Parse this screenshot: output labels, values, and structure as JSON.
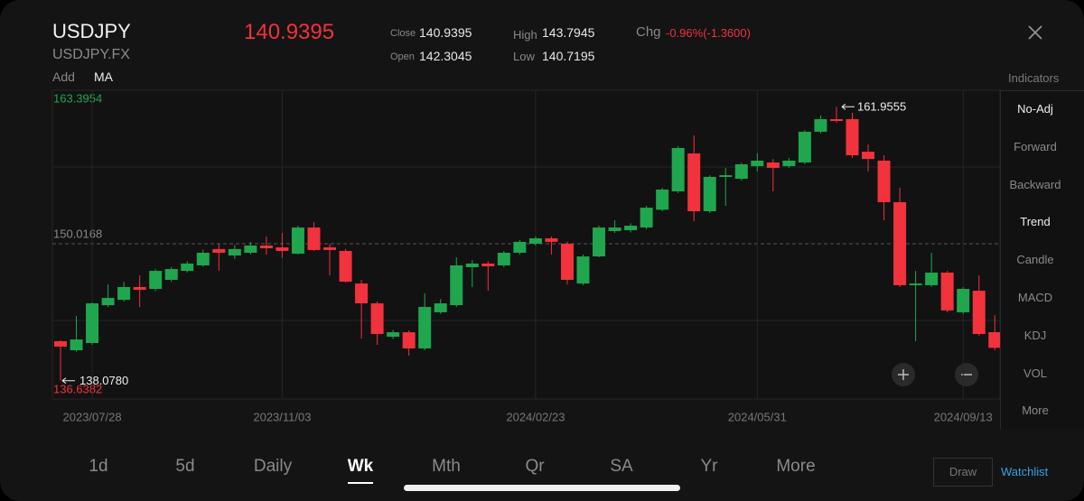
{
  "header": {
    "symbol": "USDJPY",
    "code": "USDJPY.FX",
    "price": "140.9395",
    "stats": [
      {
        "label": "Close",
        "value": "140.9395"
      },
      {
        "label": "Open",
        "value": "142.3045"
      },
      {
        "label": "High",
        "value": "143.7945"
      },
      {
        "label": "Low",
        "value": "140.7195"
      }
    ],
    "chg_label": "Chg",
    "chg": "-0.96%(-1.3600)"
  },
  "toolbar": {
    "add": "Add",
    "ma": "MA"
  },
  "indicators": {
    "title": "Indicators",
    "items": [
      "No-Adj",
      "Forward",
      "Backward",
      "Trend",
      "Candle",
      "MACD",
      "KDJ",
      "VOL",
      "More"
    ]
  },
  "periods": [
    "1d",
    "5d",
    "Daily",
    "Wk",
    "Mth",
    "Qr",
    "SA",
    "Yr",
    "More"
  ],
  "buttons": {
    "draw": "Draw",
    "watchlist": "Watchlist"
  },
  "chart_data": {
    "type": "candlestick",
    "categories": [
      null,
      null,
      "2023/07/28",
      null,
      null,
      null,
      null,
      null,
      null,
      null,
      null,
      null,
      null,
      null,
      "2023/11/03",
      null,
      null,
      null,
      null,
      null,
      null,
      null,
      null,
      null,
      null,
      null,
      null,
      null,
      null,
      null,
      "2024/02/23",
      null,
      null,
      null,
      null,
      null,
      null,
      null,
      null,
      null,
      null,
      null,
      null,
      null,
      "2024/05/31",
      null,
      null,
      null,
      null,
      null,
      null,
      null,
      null,
      null,
      null,
      null,
      null,
      "2024/09/13",
      null,
      null
    ],
    "open": [
      141.52,
      140.73,
      141.36,
      144.66,
      145.13,
      146.24,
      146.08,
      146.87,
      147.65,
      148.13,
      149.55,
      148.99,
      149.23,
      149.86,
      149.7,
      149.15,
      151.43,
      149.7,
      149.39,
      146.55,
      144.82,
      141.91,
      142.3,
      140.89,
      144.04,
      144.66,
      147.97,
      148.29,
      148.13,
      149.23,
      150.02,
      150.49,
      150.02,
      146.55,
      148.91,
      151.12,
      151.2,
      151.43,
      152.98,
      154.58,
      157.89,
      152.85,
      155.84,
      155.68,
      156.78,
      157.1,
      156.78,
      157.1,
      159.78,
      160.88,
      160.88,
      158.04,
      157.26,
      153.64,
      146.4,
      146.4,
      147.5,
      144.04,
      145.92,
      142.3045
    ],
    "high": [
      141.6,
      143.72,
      144.9,
      146.47,
      146.7,
      147.26,
      147.8,
      148.0,
      148.5,
      149.5,
      150.0,
      149.9,
      150.18,
      150.65,
      150.96,
      151.59,
      151.9,
      150.0,
      149.55,
      146.87,
      144.98,
      142.5,
      142.46,
      145.69,
      145.2,
      148.84,
      148.6,
      148.5,
      149.39,
      150.34,
      150.65,
      150.65,
      150.18,
      149.07,
      151.59,
      152.06,
      151.8,
      153.32,
      154.9,
      158.52,
      159.46,
      155.99,
      156.63,
      157.1,
      157.89,
      157.41,
      157.5,
      159.93,
      161.2,
      161.9555,
      161.43,
      158.67,
      157.73,
      154.9,
      147.65,
      149.23,
      147.65,
      146.24,
      147.26,
      143.7945
    ],
    "low": [
      138.078,
      140.6,
      141.2,
      144.5,
      144.98,
      144.5,
      145.9,
      146.7,
      147.5,
      148.0,
      147.65,
      148.7,
      149.07,
      149.07,
      148.8,
      149.07,
      149.39,
      147.26,
      146.63,
      141.75,
      141.2,
      141.7,
      140.26,
      140.73,
      143.9,
      144.5,
      146.24,
      145.92,
      147.97,
      149.07,
      149.86,
      149.07,
      146.47,
      146.4,
      148.84,
      150.96,
      151.0,
      151.28,
      152.85,
      154.42,
      151.98,
      152.69,
      153.32,
      155.52,
      156.31,
      154.58,
      156.63,
      156.94,
      159.62,
      160.56,
      157.5,
      156.31,
      152.06,
      146.24,
      141.52,
      146.24,
      144.04,
      143.88,
      142.0,
      140.7195
    ],
    "close": [
      141.05,
      141.67,
      144.82,
      145.29,
      146.24,
      146.0,
      147.65,
      147.81,
      148.29,
      149.23,
      149.23,
      149.55,
      149.86,
      149.62,
      149.39,
      151.43,
      149.47,
      149.47,
      146.71,
      144.82,
      142.15,
      142.3,
      140.89,
      144.51,
      144.82,
      148.13,
      148.29,
      148.05,
      149.23,
      150.18,
      150.49,
      150.18,
      146.87,
      148.91,
      151.43,
      151.43,
      151.59,
      153.16,
      154.74,
      158.36,
      152.85,
      155.84,
      155.99,
      156.94,
      157.26,
      156.63,
      157.26,
      159.78,
      160.88,
      160.72,
      157.73,
      157.41,
      153.64,
      146.4,
      146.55,
      147.5,
      144.2,
      146.08,
      142.15,
      140.9395
    ],
    "up_color": "#1fa64e",
    "down_color": "#f2323c",
    "ylim": [
      136.6382,
      163.3954
    ],
    "yticks": [
      136.6382,
      150.0168,
      163.3954
    ],
    "high_marker": 161.9555,
    "low_marker": {
      "value": 138.078,
      "label": "138.0780"
    },
    "grid": true
  }
}
